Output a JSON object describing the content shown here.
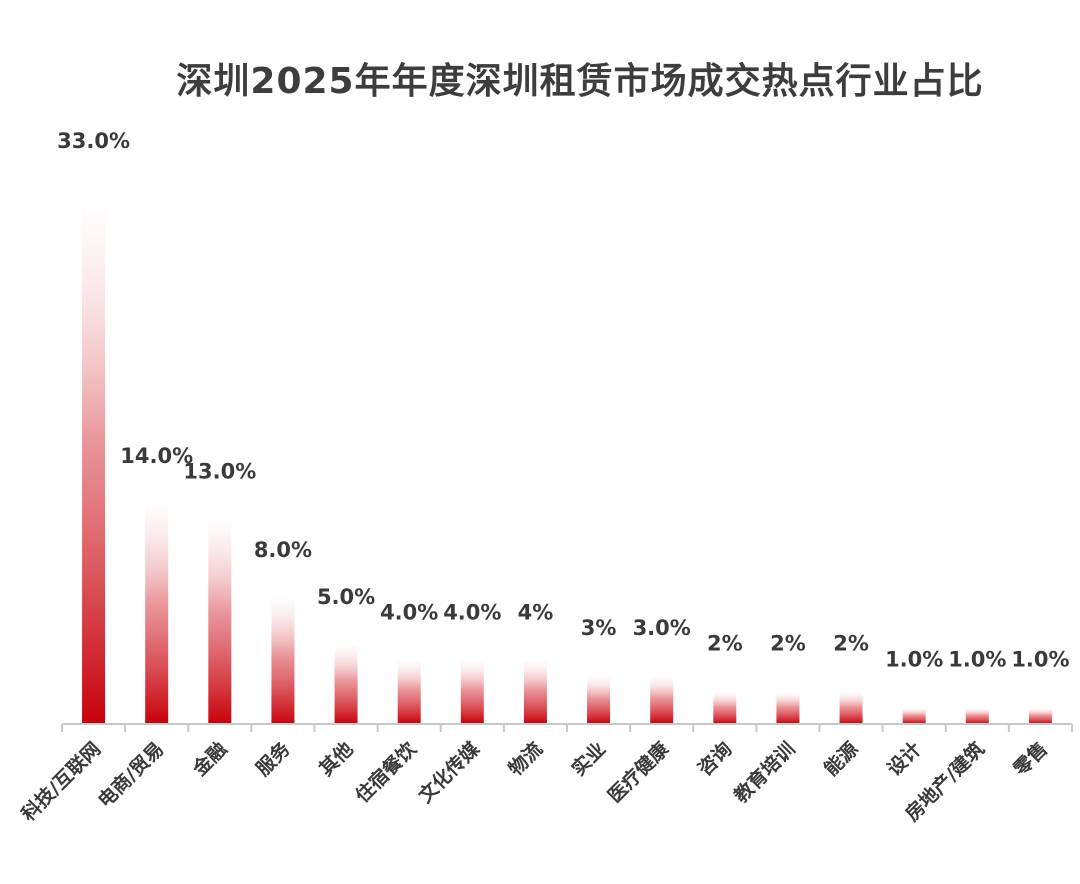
{
  "chart_data": {
    "type": "bar",
    "title": "深圳2025年年度深圳租赁市场成交热点行业占比",
    "categories": [
      "科技/互联网",
      "电商/贸易",
      "金融",
      "服务",
      "其他",
      "住宿餐饮",
      "文化传媒",
      "物流",
      "实业",
      "医疗健康",
      "咨询",
      "教育培训",
      "能源",
      "设计",
      "房地产/建筑",
      "零售"
    ],
    "values": [
      33.0,
      14.0,
      13.0,
      8.0,
      5.0,
      4.0,
      4.0,
      4,
      3,
      3.0,
      2,
      2,
      2,
      1.0,
      1.0,
      1.0
    ],
    "value_labels": [
      "33.0%",
      "14.0%",
      "13.0%",
      "8.0%",
      "5.0%",
      "4.0%",
      "4.0%",
      "4%",
      "3%",
      "3.0%",
      "2%",
      "2%",
      "2%",
      "1.0%",
      "1.0%",
      "1.0%"
    ],
    "xlabel": "",
    "ylabel": "",
    "ylim": [
      0,
      33
    ],
    "grid": false,
    "bar_color": "#c8000a"
  }
}
